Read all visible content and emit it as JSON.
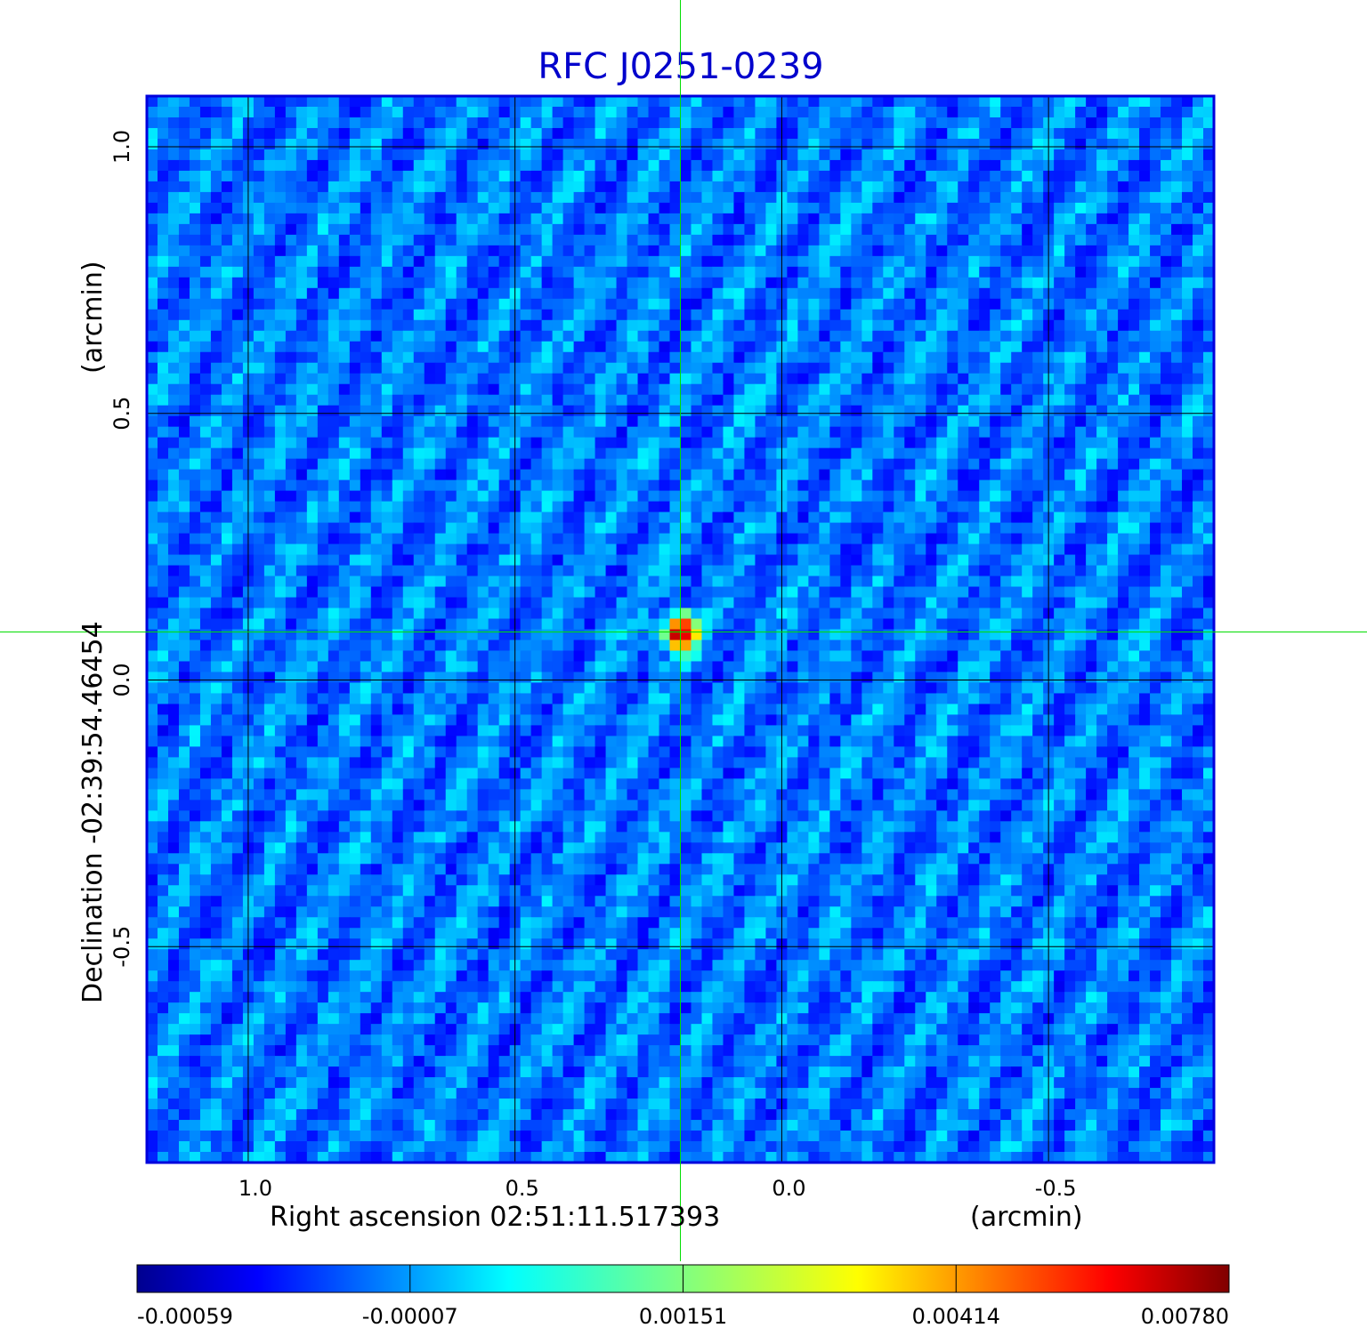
{
  "chart_data": {
    "type": "heatmap",
    "title": "RFC J0251-0239",
    "xlabel": "Right ascension  02:51:11.517393",
    "xunit": "(arcmin)",
    "ylabel": "Declination  -02:39:54.46454",
    "yunit": "(arcmin)",
    "x_ticks": [
      1.0,
      0.5,
      0.0,
      -0.5
    ],
    "x_tick_labels": [
      "1.0",
      "0.5",
      "0.0",
      "-0.5"
    ],
    "y_ticks": [
      1.0,
      0.5,
      0.0,
      -0.5
    ],
    "y_tick_labels": [
      "1.0",
      "0.5",
      "0.0",
      "-0.5"
    ],
    "xlim": [
      1.19,
      -0.81
    ],
    "ylim": [
      -0.905,
      1.095
    ],
    "grid": true,
    "source_peak": {
      "x": 0.19,
      "y": 0.09,
      "value": 0.0078
    },
    "crosshair": {
      "x": 0.19,
      "y": 0.09,
      "color": "#00dd00"
    },
    "background_noise_range": [
      -0.00059,
      0.0006
    ],
    "colorbar": {
      "ticks": [
        -0.00059,
        -7e-05,
        0.00151,
        0.00414,
        0.0078
      ],
      "tick_labels": [
        "-0.00059",
        "-0.00007",
        "0.00151",
        "0.00414",
        "0.00780"
      ],
      "colormap": "jet"
    },
    "colors": {
      "title": "#0000cc",
      "frame": "#0000dd",
      "grid": "#000000",
      "crosshair": "#00dd00"
    }
  }
}
